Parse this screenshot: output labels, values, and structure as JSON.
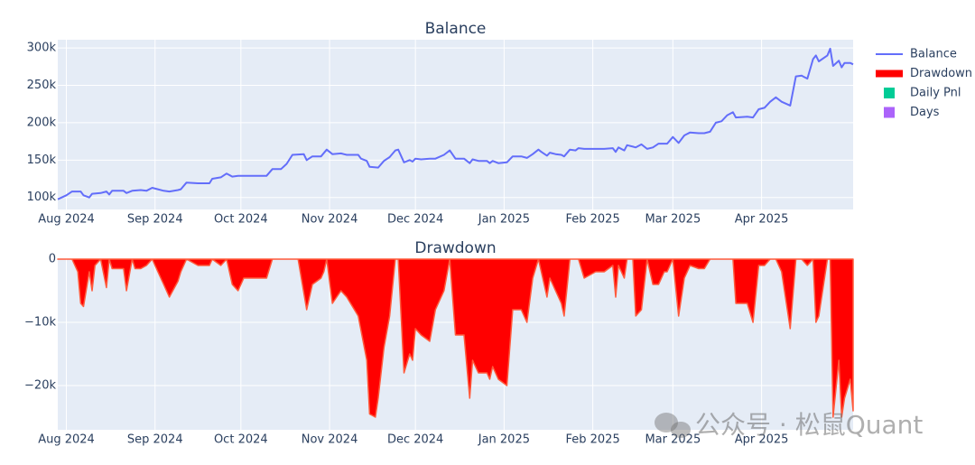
{
  "chart_data": [
    {
      "type": "line",
      "title": "Balance",
      "x": [
        -3,
        0,
        2,
        5,
        6,
        8,
        9,
        12,
        14,
        15,
        16,
        20,
        21,
        23,
        26,
        28,
        30,
        32,
        34,
        36,
        39,
        40,
        42,
        46,
        50,
        51,
        54,
        56,
        58,
        60,
        65,
        70,
        72,
        75,
        77,
        79,
        83,
        84,
        86,
        89,
        91,
        93,
        96,
        98,
        102,
        103,
        105,
        106,
        109,
        111,
        113,
        115,
        116,
        118,
        120,
        121,
        122,
        124,
        127,
        129,
        132,
        134,
        136,
        139,
        141,
        142,
        144,
        147,
        148,
        149,
        151,
        154,
        156,
        159,
        161,
        163,
        165,
        166,
        168,
        169,
        171,
        173,
        174,
        176,
        178,
        179,
        181,
        185,
        188,
        191,
        192,
        193,
        195,
        196,
        198,
        199,
        201,
        203,
        205,
        207,
        209,
        210,
        212,
        214,
        216,
        218,
        221,
        223,
        225,
        227,
        229,
        231,
        233,
        234,
        238,
        240,
        242,
        244,
        246,
        248,
        250,
        253,
        255,
        257,
        259,
        261,
        262,
        263,
        266,
        267,
        268,
        270,
        271,
        272,
        274,
        275
      ],
      "series": [
        {
          "name": "Balance",
          "color": "#636efa",
          "values": [
            97600,
            103000,
            108000,
            108000,
            103000,
            100000,
            105000,
            106000,
            108000,
            104000,
            109000,
            109000,
            106000,
            109000,
            110000,
            109000,
            113000,
            111000,
            109000,
            108000,
            110000,
            111000,
            120000,
            119000,
            119000,
            125000,
            127000,
            132000,
            128000,
            129000,
            129000,
            129000,
            138000,
            138000,
            145000,
            157000,
            158000,
            150000,
            155000,
            155000,
            164000,
            158000,
            159000,
            157000,
            157000,
            152000,
            149000,
            141000,
            140000,
            149000,
            154000,
            163000,
            164000,
            147000,
            150000,
            148000,
            152000,
            151000,
            152000,
            152000,
            157000,
            163000,
            152000,
            152000,
            146000,
            151000,
            149000,
            149000,
            146000,
            149000,
            146000,
            147000,
            155000,
            155000,
            153000,
            158000,
            164000,
            161000,
            156000,
            160000,
            158000,
            157000,
            155000,
            164000,
            163000,
            166000,
            165000,
            165000,
            165000,
            166000,
            161000,
            167000,
            163000,
            170000,
            168000,
            167000,
            171000,
            165000,
            167000,
            172000,
            172000,
            172000,
            181000,
            173000,
            183000,
            187000,
            186000,
            186000,
            188000,
            200000,
            202000,
            210000,
            214000,
            207000,
            208000,
            207000,
            218000,
            220000,
            228000,
            234000,
            228000,
            223000,
            262000,
            263000,
            259000,
            285000,
            290000,
            282000,
            290000,
            299000,
            276000,
            283000,
            274000,
            280000,
            280000,
            278000
          ]
        }
      ],
      "xlim": [
        -3,
        275
      ],
      "xticks": [
        {
          "value": 0,
          "label": "Aug 2024"
        },
        {
          "value": 31,
          "label": "Sep 2024"
        },
        {
          "value": 61,
          "label": "Oct 2024"
        },
        {
          "value": 92,
          "label": "Nov 2024"
        },
        {
          "value": 122,
          "label": "Dec 2024"
        },
        {
          "value": 153,
          "label": "Jan 2025"
        },
        {
          "value": 184,
          "label": "Feb 2025"
        },
        {
          "value": 212,
          "label": "Mar 2025"
        },
        {
          "value": 243,
          "label": "Apr 2025"
        }
      ],
      "ylim": [
        84000,
        311000
      ],
      "yticks": [
        {
          "value": 100000,
          "label": "100k"
        },
        {
          "value": 150000,
          "label": "150k"
        },
        {
          "value": 200000,
          "label": "200k"
        },
        {
          "value": 250000,
          "label": "250k"
        },
        {
          "value": 300000,
          "label": "300k"
        }
      ],
      "grid": true
    },
    {
      "type": "area",
      "title": "Drawdown",
      "x": [
        -3,
        2,
        4,
        5,
        6,
        8,
        9,
        10,
        12,
        14,
        15,
        16,
        20,
        21,
        23,
        24,
        26,
        28,
        30,
        32,
        34,
        36,
        39,
        40,
        42,
        46,
        50,
        51,
        54,
        56,
        58,
        60,
        62,
        65,
        70,
        72,
        81,
        84,
        86,
        89,
        90,
        91,
        93,
        96,
        98,
        102,
        105,
        106,
        108,
        109,
        111,
        113,
        115,
        116,
        118,
        120,
        121,
        122,
        124,
        127,
        129,
        132,
        134,
        136,
        139,
        141,
        142,
        144,
        147,
        148,
        149,
        151,
        154,
        156,
        159,
        161,
        163,
        165,
        166,
        168,
        169,
        171,
        173,
        174,
        176,
        179,
        181,
        185,
        188,
        191,
        192,
        193,
        195,
        196,
        198,
        199,
        201,
        203,
        205,
        207,
        209,
        210,
        212,
        214,
        216,
        218,
        221,
        223,
        225,
        229,
        233,
        234,
        238,
        240,
        242,
        244,
        246,
        248,
        250,
        253,
        255,
        257,
        259,
        261,
        262,
        263,
        266,
        267,
        268,
        270,
        271,
        272,
        274,
        275
      ],
      "series": [
        {
          "name": "Drawdown",
          "color": "#ff0000",
          "values": [
            0,
            0,
            -2000,
            -7000,
            -7500,
            -2000,
            -5000,
            -1000,
            0,
            -4500,
            0,
            -1500,
            -1500,
            -5000,
            0,
            -1500,
            -1500,
            -1000,
            0,
            -2000,
            -4000,
            -6000,
            -3500,
            -2000,
            0,
            -1000,
            -1000,
            0,
            -1000,
            0,
            -4000,
            -5000,
            -3000,
            -3000,
            -3000,
            0,
            0,
            -8000,
            -4000,
            -3000,
            -2000,
            0,
            -7000,
            -5000,
            -6000,
            -9000,
            -16000,
            -24500,
            -25000,
            -22000,
            -14000,
            -9000,
            0,
            0,
            -18000,
            -15000,
            -16000,
            -11000,
            -12000,
            -13000,
            -8000,
            -5000,
            0,
            -12000,
            -12000,
            -22000,
            -16000,
            -18000,
            -18000,
            -19000,
            -17000,
            -19000,
            -20000,
            -8000,
            -8000,
            -10000,
            -3000,
            0,
            -2000,
            -6000,
            -3000,
            -5000,
            -7000,
            -9000,
            0,
            0,
            -3000,
            -2000,
            -2000,
            -1000,
            -6000,
            -1000,
            -3000,
            0,
            0,
            -9000,
            -8000,
            0,
            -4000,
            -4000,
            -2000,
            -2000,
            0,
            -9000,
            -3000,
            -1000,
            -1500,
            -1500,
            0,
            0,
            0,
            -7000,
            -7000,
            -10000,
            -1000,
            -1000,
            0,
            0,
            -2000,
            -11000,
            0,
            0,
            -1000,
            0,
            -10000,
            -9000,
            0,
            0,
            -25000,
            -16000,
            -25000,
            -22000,
            -19000,
            -24000
          ]
        }
      ],
      "xlim": [
        -3,
        275
      ],
      "xticks": [
        {
          "value": 0,
          "label": "Aug 2024"
        },
        {
          "value": 31,
          "label": "Sep 2024"
        },
        {
          "value": 61,
          "label": "Oct 2024"
        },
        {
          "value": 92,
          "label": "Nov 2024"
        },
        {
          "value": 122,
          "label": "Dec 2024"
        },
        {
          "value": 153,
          "label": "Jan 2025"
        },
        {
          "value": 184,
          "label": "Feb 2025"
        },
        {
          "value": 212,
          "label": "Mar 2025"
        },
        {
          "value": 243,
          "label": "Apr 2025"
        }
      ],
      "ylim": [
        -27000,
        0
      ],
      "yticks": [
        {
          "value": -20000,
          "label": "−20k"
        },
        {
          "value": -10000,
          "label": "−10k"
        },
        0
      ],
      "grid": true
    }
  ],
  "extra_legend": [
    {
      "name": "Daily Pnl",
      "color": "#00cc96"
    },
    {
      "name": "Days",
      "color": "#ab63fa"
    }
  ],
  "watermark": "公众号 · 松鼠Quant"
}
